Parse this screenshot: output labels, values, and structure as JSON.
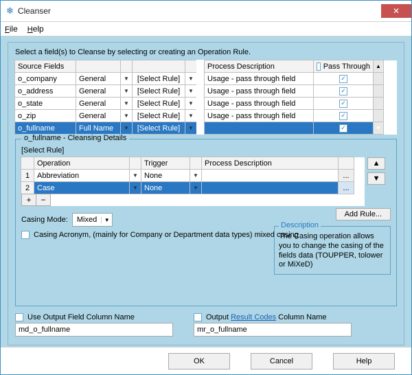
{
  "window": {
    "title": "Cleanser"
  },
  "menu": {
    "file": "File",
    "help": "Help"
  },
  "instruction": "Select a field(s) to Cleanse by selecting or creating an Operation Rule.",
  "source_grid": {
    "headers": {
      "fields": "Source Fields",
      "process": "Process Description",
      "pass": "Pass Through"
    },
    "rows": [
      {
        "name": "o_company",
        "type": "General",
        "rule": "[Select Rule]",
        "process": "Usage - pass through field",
        "pass": true,
        "selected": false
      },
      {
        "name": "o_address",
        "type": "General",
        "rule": "[Select Rule]",
        "process": "Usage - pass through field",
        "pass": true,
        "selected": false
      },
      {
        "name": "o_state",
        "type": "General",
        "rule": "[Select Rule]",
        "process": "Usage - pass through field",
        "pass": true,
        "selected": false
      },
      {
        "name": "o_zip",
        "type": "General",
        "rule": "[Select Rule]",
        "process": "Usage - pass through field",
        "pass": true,
        "selected": false
      },
      {
        "name": "o_fullname",
        "type": "Full Name",
        "rule": "[Select Rule]",
        "process": "",
        "pass": true,
        "selected": true
      }
    ]
  },
  "details": {
    "title": "o_fullname - Cleansing Details",
    "select_rule": "[Select Rule]",
    "headers": {
      "operation": "Operation",
      "trigger": "Trigger",
      "process": "Process Description"
    },
    "rows": [
      {
        "num": "1",
        "op": "Abbreviation",
        "trigger": "None",
        "process": "",
        "selected": false
      },
      {
        "num": "2",
        "op": "Case",
        "trigger": "None",
        "process": "",
        "selected": true
      }
    ],
    "add_rule": "Add Rule..."
  },
  "casing": {
    "mode_label": "Casing Mode:",
    "mode_value": "Mixed",
    "acronym_label": "Casing Acronym, (mainly for Company or Department data types) mixed casing"
  },
  "description": {
    "title": "Description",
    "text": "The Casing operation allows you to change the casing of the fields data (TOUPPER, tolower or MiXeD)"
  },
  "output": {
    "use_field_label": "Use Output Field Column Name",
    "use_field_value": "md_o_fullname",
    "result_prefix": "Output ",
    "result_link": "Result Codes",
    "result_suffix": " Column Name",
    "result_value": "mr_o_fullname"
  },
  "buttons": {
    "ok": "OK",
    "cancel": "Cancel",
    "help": "Help"
  },
  "colors": {
    "selection": "#2a78c4",
    "panel": "#aed6e6",
    "outer": "#b2d8e7",
    "close": "#c75050"
  }
}
